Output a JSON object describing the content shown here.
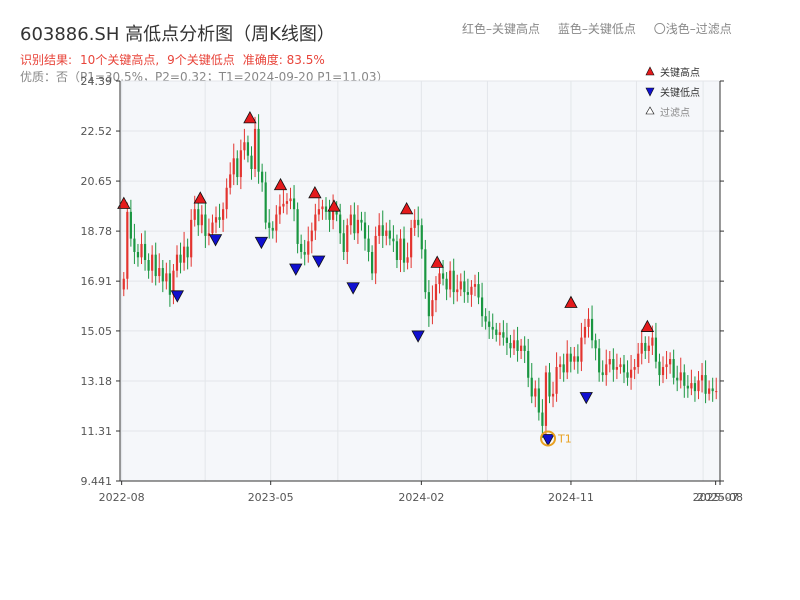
{
  "chart_data": {
    "type": "candlestick",
    "title": "603886.SH 高低点分析图（周K线图）",
    "header_legend": [
      "红色–关键高点",
      "蓝色–关键低点",
      "〇浅色–过滤点"
    ],
    "result_line": {
      "prefix": "识别结果:",
      "highs": "10个关键高点,",
      "lows": "9个关键低点",
      "accuracy": "准确度: 83.5%"
    },
    "quality_line": "优质：否（P1=30.5%，P2=0.32；T1=2024-09-20 P1=11.03）",
    "y_ticks": [
      "9.441",
      "11.31",
      "13.18",
      "15.05",
      "16.91",
      "18.78",
      "20.65",
      "22.52",
      "24.39"
    ],
    "y_range": [
      9.441,
      24.39
    ],
    "x_ticks": [
      "2022-08",
      "2023-05",
      "2024-02",
      "2024-11",
      "2025-07",
      "2025-08"
    ],
    "x_range": [
      "2022-07-29",
      "2025-08-01"
    ],
    "legend": {
      "position": "top-right",
      "items": [
        "关键高点",
        "关键低点",
        "过滤点"
      ]
    },
    "colors": {
      "up": "#e3342f",
      "down": "#1a9641",
      "key_high": "#e41a1c",
      "key_low": "#1010d0",
      "t1": "#e8a020",
      "plot_bg": "#f5f7fa"
    },
    "key_highs": [
      {
        "date": "2022-08-05",
        "value": 19.7
      },
      {
        "date": "2022-12-23",
        "value": 19.9
      },
      {
        "date": "2023-03-24",
        "value": 22.9
      },
      {
        "date": "2023-05-19",
        "value": 20.4
      },
      {
        "date": "2023-07-21",
        "value": 20.1
      },
      {
        "date": "2023-08-25",
        "value": 19.6
      },
      {
        "date": "2024-01-05",
        "value": 19.5
      },
      {
        "date": "2024-03-01",
        "value": 17.5
      },
      {
        "date": "2024-11-01",
        "value": 16.0
      },
      {
        "date": "2025-03-21",
        "value": 15.1
      }
    ],
    "key_lows": [
      {
        "date": "2022-11-11",
        "value": 16.4
      },
      {
        "date": "2023-01-20",
        "value": 18.5
      },
      {
        "date": "2023-04-14",
        "value": 18.4
      },
      {
        "date": "2023-06-16",
        "value": 17.4
      },
      {
        "date": "2023-07-28",
        "value": 17.7
      },
      {
        "date": "2023-09-29",
        "value": 16.7
      },
      {
        "date": "2024-01-26",
        "value": 14.9
      },
      {
        "date": "2024-09-20",
        "value": 11.03
      },
      {
        "date": "2024-11-29",
        "value": 12.6
      }
    ],
    "t1": {
      "label": "T1",
      "date": "2024-09-20",
      "value": 11.03
    },
    "weekly_closes": [
      17.0,
      19.5,
      18.5,
      18.0,
      17.8,
      18.3,
      17.7,
      17.3,
      17.9,
      17.1,
      17.4,
      16.9,
      17.2,
      16.4,
      17.3,
      17.9,
      17.6,
      18.2,
      17.8,
      19.2,
      19.6,
      19.0,
      19.4,
      18.6,
      18.7,
      19.1,
      19.3,
      19.2,
      19.6,
      20.4,
      20.9,
      21.5,
      20.8,
      21.8,
      22.1,
      21.6,
      21.1,
      22.6,
      21.0,
      20.6,
      19.1,
      18.9,
      18.8,
      19.4,
      19.7,
      19.8,
      19.9,
      20.0,
      19.6,
      18.3,
      18.0,
      17.9,
      18.4,
      18.8,
      19.4,
      19.6,
      19.7,
      19.5,
      19.2,
      19.6,
      19.4,
      18.7,
      18.0,
      19.0,
      19.4,
      18.7,
      19.2,
      19.1,
      18.5,
      18.0,
      17.2,
      18.6,
      19.0,
      18.6,
      18.8,
      18.5,
      18.4,
      17.7,
      18.5,
      17.6,
      17.8,
      18.9,
      19.2,
      19.0,
      18.1,
      16.5,
      15.6,
      16.2,
      16.8,
      17.2,
      17.0,
      16.6,
      17.3,
      16.5,
      16.6,
      16.9,
      16.5,
      16.4,
      16.7,
      16.8,
      16.3,
      15.6,
      15.4,
      15.2,
      15.1,
      14.9,
      15.0,
      14.8,
      14.6,
      14.4,
      14.7,
      14.3,
      14.5,
      14.3,
      13.3,
      12.6,
      12.9,
      12.0,
      11.5,
      13.5,
      12.6,
      12.7,
      13.7,
      13.8,
      13.5,
      14.2,
      13.9,
      14.1,
      13.9,
      14.8,
      15.2,
      15.5,
      14.7,
      14.4,
      13.5,
      13.4,
      13.8,
      14.0,
      13.6,
      13.7,
      13.8,
      13.5,
      13.3,
      13.6,
      13.7,
      14.2,
      14.6,
      14.3,
      14.5,
      14.8,
      13.9,
      13.4,
      13.7,
      13.8,
      14.0,
      13.3,
      13.2,
      13.5,
      13.0,
      12.9,
      13.1,
      12.8,
      13.2,
      13.4,
      12.7,
      12.9,
      12.8,
      12.8
    ]
  }
}
